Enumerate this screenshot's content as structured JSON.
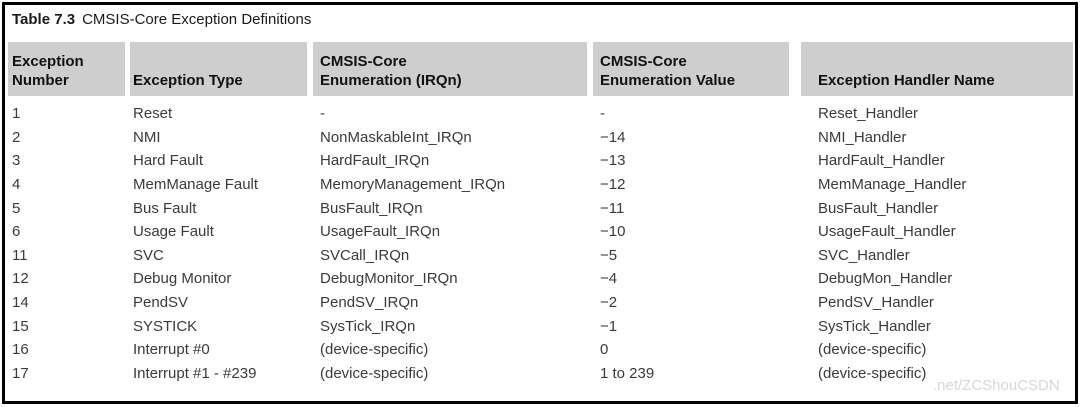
{
  "title": {
    "label": "Table 7.3",
    "caption": "CMSIS-Core Exception Definitions"
  },
  "table": {
    "columns": [
      {
        "id": "number",
        "line1": "Exception",
        "line2": "Number"
      },
      {
        "id": "type",
        "line1": "",
        "line2": "Exception Type"
      },
      {
        "id": "enumeration",
        "line1": "CMSIS-Core",
        "line2": "Enumeration (IRQn)"
      },
      {
        "id": "value",
        "line1": "CMSIS-Core",
        "line2": "Enumeration Value"
      },
      {
        "id": "handler",
        "line1": "",
        "line2": "Exception Handler Name"
      }
    ],
    "field_order": [
      "number",
      "type",
      "enumeration",
      "value",
      "handler"
    ],
    "rows": [
      {
        "number": "1",
        "type": "Reset",
        "enumeration": "-",
        "value": "-",
        "handler": "Reset_Handler"
      },
      {
        "number": "2",
        "type": "NMI",
        "enumeration": "NonMaskableInt_IRQn",
        "value": "−14",
        "handler": "NMI_Handler"
      },
      {
        "number": "3",
        "type": "Hard Fault",
        "enumeration": "HardFault_IRQn",
        "value": "−13",
        "handler": "HardFault_Handler"
      },
      {
        "number": "4",
        "type": "MemManage Fault",
        "enumeration": "MemoryManagement_IRQn",
        "value": "−12",
        "handler": "MemManage_Handler"
      },
      {
        "number": "5",
        "type": "Bus Fault",
        "enumeration": "BusFault_IRQn",
        "value": "−11",
        "handler": "BusFault_Handler"
      },
      {
        "number": "6",
        "type": "Usage Fault",
        "enumeration": "UsageFault_IRQn",
        "value": "−10",
        "handler": "UsageFault_Handler"
      },
      {
        "number": "11",
        "type": "SVC",
        "enumeration": "SVCall_IRQn",
        "value": "−5",
        "handler": "SVC_Handler"
      },
      {
        "number": "12",
        "type": "Debug Monitor",
        "enumeration": "DebugMonitor_IRQn",
        "value": "−4",
        "handler": "DebugMon_Handler"
      },
      {
        "number": "14",
        "type": "PendSV",
        "enumeration": "PendSV_IRQn",
        "value": "−2",
        "handler": "PendSV_Handler"
      },
      {
        "number": "15",
        "type": "SYSTICK",
        "enumeration": "SysTick_IRQn",
        "value": "−1",
        "handler": "SysTick_Handler"
      },
      {
        "number": "16",
        "type": "Interrupt #0",
        "enumeration": "(device-specific)",
        "value": "0",
        "handler": "(device-specific)"
      },
      {
        "number": "17",
        "type": "Interrupt #1 - #239",
        "enumeration": "(device-specific)",
        "value": "1 to 239",
        "handler": "(device-specific)"
      }
    ]
  },
  "watermark": {
    "text": ".net/ZCShouCSDN"
  },
  "colors": {
    "header_bg": "#cecece",
    "border": "#000000",
    "body_text": "#3a3a3a",
    "header_text": "#111111",
    "watermark_text": "#d7d7d7"
  }
}
